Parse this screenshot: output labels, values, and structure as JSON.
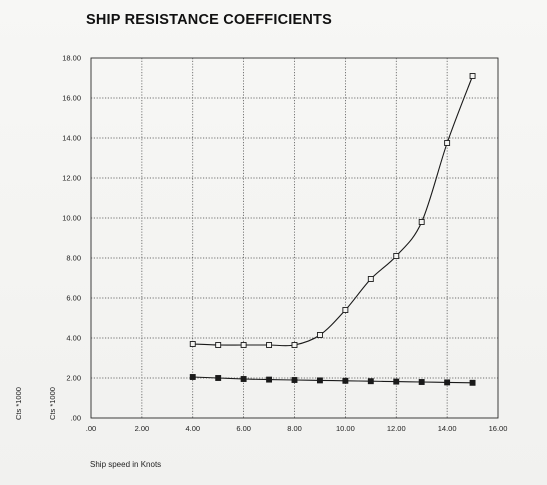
{
  "chart_data": {
    "type": "line",
    "title": "SHIP RESISTANCE COEFFICIENTS",
    "xlabel": "Ship speed in Knots",
    "ylabel": "Cts *1000",
    "ylabel_outer": "Cts *1000",
    "xlim": [
      0,
      16
    ],
    "ylim": [
      0,
      18
    ],
    "x_ticks": [
      ".00",
      "2.00",
      "4.00",
      "6.00",
      "8.00",
      "10.00",
      "12.00",
      "14.00",
      "16.00"
    ],
    "y_ticks": [
      ".00",
      "2.00",
      "4.00",
      "6.00",
      "8.00",
      "10.00",
      "12.00",
      "14.00",
      "16.00",
      "18.00"
    ],
    "grid": true,
    "series": [
      {
        "marker": "hollow-square",
        "color": "#1a1a1a",
        "x": [
          4,
          5,
          6,
          7,
          8,
          9,
          10,
          11,
          12,
          13,
          14,
          15
        ],
        "y": [
          3.7,
          3.65,
          3.65,
          3.65,
          3.65,
          4.15,
          5.4,
          6.95,
          8.1,
          9.8,
          13.75,
          17.1
        ]
      },
      {
        "marker": "filled-square",
        "color": "#1a1a1a",
        "x": [
          4,
          5,
          6,
          7,
          8,
          9,
          10,
          11,
          12,
          13,
          14,
          15
        ],
        "y": [
          2.05,
          2.0,
          1.95,
          1.92,
          1.9,
          1.88,
          1.86,
          1.84,
          1.82,
          1.8,
          1.78,
          1.76
        ]
      }
    ]
  }
}
